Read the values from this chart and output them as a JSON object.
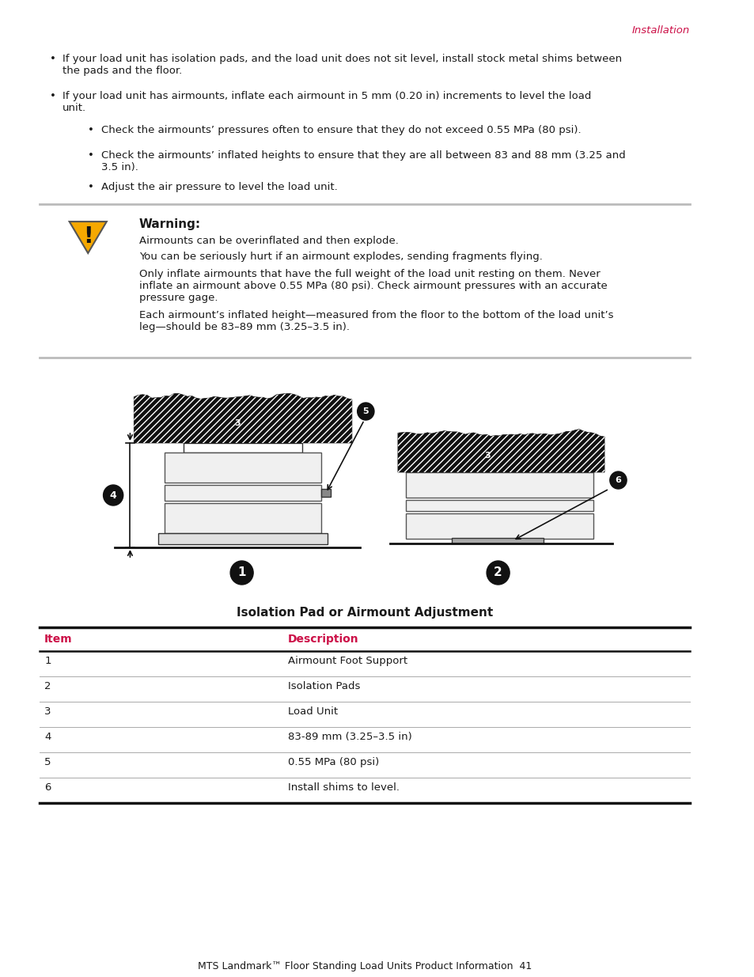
{
  "page_header": "Installation",
  "header_color": "#cc1148",
  "warning_title": "Warning:",
  "warning_lines": [
    "Airmounts can be overinflated and then explode.",
    "You can be seriously hurt if an airmount explodes, sending fragments flying.",
    "Only inflate airmounts that have the full weight of the load unit resting on them. Never\ninflate an airmount above 0.55 MPa (80 psi). Check airmount pressures with an accurate\npressure gage.",
    "Each airmount’s inflated height—measured from the floor to the bottom of the load unit’s\nleg—should be 83–89 mm (3.25–3.5 in)."
  ],
  "table_title": "Isolation Pad or Airmount Adjustment",
  "table_header": [
    "Item",
    "Description"
  ],
  "table_rows": [
    [
      "1",
      "Airmount Foot Support"
    ],
    [
      "2",
      "Isolation Pads"
    ],
    [
      "3",
      "Load Unit"
    ],
    [
      "4",
      "83-89 mm (3.25–3.5 in)"
    ],
    [
      "5",
      "0.55 MPa (80 psi)"
    ],
    [
      "6",
      "Install shims to level."
    ]
  ],
  "footer_text": "MTS Landmark™ Floor Standing Load Units Product Information  41",
  "red_color": "#cc1148",
  "bg_color": "#ffffff",
  "text_color": "#1a1a1a",
  "gray_line": "#aaaaaa",
  "dark": "#111111"
}
